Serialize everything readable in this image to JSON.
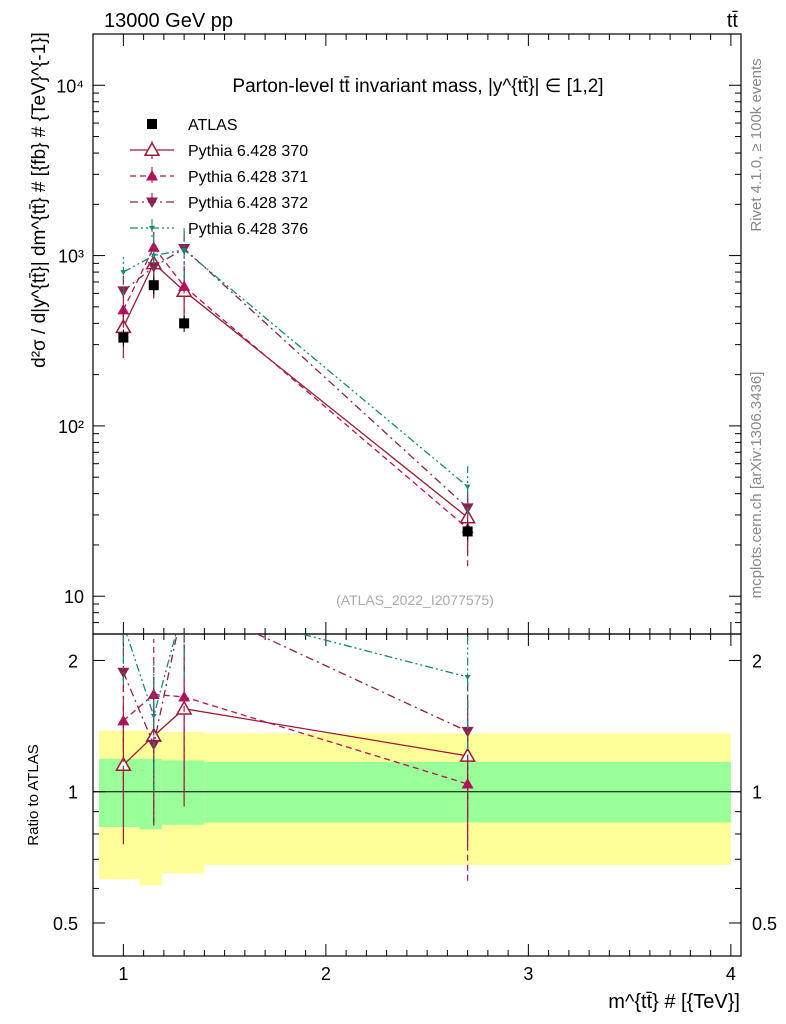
{
  "header": {
    "energy_label": "13000 GeV pp",
    "process_label": "tt̄"
  },
  "side_labels": {
    "rivet": "Rivet 4.1.0, ≥ 100k events",
    "source": "mcplots.cern.ch [arXiv:1306.3436]"
  },
  "chart_data": {
    "type": "line",
    "title": "Parton-level tt̄ invariant mass, |y^{tt̄}| ∈ [1,2]",
    "analysis_tag": "(ATLAS_2022_I2077575)",
    "xlabel": "m^{tt̄} # [{TeV}]",
    "ylabel": "d²σ / d|y^{tt̄}| dm^{tt̄} # [{fb} # {TeV}^{-1}]",
    "ratio_ylabel": "Ratio to ATLAS",
    "xlim": [
      0.85,
      4.05
    ],
    "ylim": [
      6.0,
      20000
    ],
    "yscale": "log",
    "ratio_ylim": [
      0.42,
      2.3
    ],
    "ratio_yscale": "log",
    "x_ticks": [
      "1",
      "2",
      "3",
      "4"
    ],
    "y_ticks": [
      {
        "value": 10,
        "label": "10"
      },
      {
        "value": 100,
        "label": "10²"
      },
      {
        "value": 1000,
        "label": "10³"
      },
      {
        "value": 10000,
        "label": "10⁴"
      }
    ],
    "ratio_ticks": [
      {
        "value": 0.5,
        "label": "0.5"
      },
      {
        "value": 1,
        "label": "1"
      },
      {
        "value": 2,
        "label": "2"
      }
    ],
    "bins": [
      {
        "lo": 0.88,
        "hi": 1.08
      },
      {
        "lo": 1.08,
        "hi": 1.19
      },
      {
        "lo": 1.19,
        "hi": 1.4
      },
      {
        "lo": 1.4,
        "hi": 4.0
      }
    ],
    "data": {
      "name": "ATLAS",
      "x": [
        1.0,
        1.15,
        1.3,
        2.7
      ],
      "y": [
        330,
        670,
        400,
        24
      ],
      "band_inner": [
        [
          0.83,
          1.19
        ],
        [
          0.82,
          1.19
        ],
        [
          0.84,
          1.18
        ],
        [
          0.85,
          1.17
        ]
      ],
      "band_outer": [
        [
          0.63,
          1.38
        ],
        [
          0.61,
          1.38
        ],
        [
          0.65,
          1.37
        ],
        [
          0.68,
          1.36
        ]
      ]
    },
    "series": [
      {
        "name": "Pythia 6.428 370",
        "color": "#9b1b30",
        "dash": "solid",
        "marker": "triangle-up-open",
        "x": [
          1.0,
          1.15,
          1.3,
          2.7
        ],
        "y": [
          380,
          900,
          620,
          29
        ],
        "yerr": [
          130,
          330,
          250,
          11
        ]
      },
      {
        "name": "Pythia 6.428 371",
        "color": "#b3125a",
        "dash": "dashed",
        "marker": "triangle-up",
        "x": [
          1.0,
          1.15,
          1.3,
          2.7
        ],
        "y": [
          480,
          1120,
          660,
          25
        ],
        "yerr": [
          150,
          380,
          260,
          10
        ]
      },
      {
        "name": "Pythia 6.428 372",
        "color": "#8f1f4c",
        "dash": "dashdot",
        "marker": "triangle-down",
        "x": [
          1.0,
          1.15,
          1.3,
          2.7
        ],
        "y": [
          620,
          860,
          1100,
          33
        ],
        "yerr": [
          200,
          300,
          350,
          12
        ]
      },
      {
        "name": "Pythia 6.428 376",
        "color": "#138a7a",
        "dash": "dashdotdot",
        "marker": "triangle-down-small",
        "x": [
          1.0,
          1.15,
          1.3,
          2.7
        ],
        "y": [
          800,
          1000,
          1080,
          44
        ],
        "yerr": [
          220,
          330,
          350,
          14
        ]
      }
    ]
  }
}
